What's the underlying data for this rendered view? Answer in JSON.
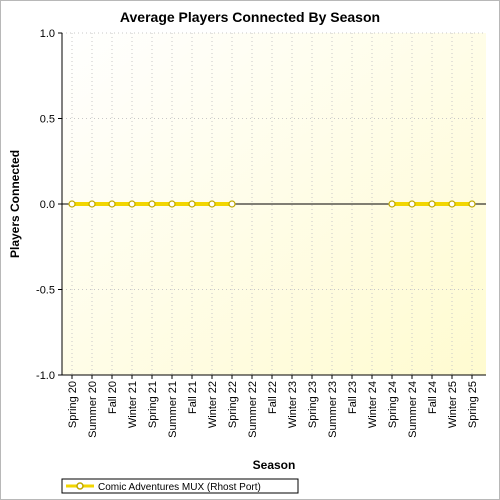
{
  "chart_data": {
    "type": "line",
    "title": "Average Players Connected By Season",
    "xlabel": "Season",
    "ylabel": "Players Connected",
    "ylim": [
      -1.0,
      1.0
    ],
    "yticks": [
      "1.0",
      "0.5",
      "0.0",
      "-0.5",
      "-1.0"
    ],
    "yticks_values": [
      1.0,
      0.5,
      0.0,
      -0.5,
      -1.0
    ],
    "categories": [
      "Spring 20",
      "Summer 20",
      "Fall 20",
      "Winter 21",
      "Spring 21",
      "Summer 21",
      "Fall 21",
      "Winter 22",
      "Spring 22",
      "Summer 22",
      "Fall 22",
      "Winter 23",
      "Spring 23",
      "Summer 23",
      "Fall 23",
      "Winter 24",
      "Spring 24",
      "Summer 24",
      "Fall 24",
      "Winter 25",
      "Spring 25"
    ],
    "series": [
      {
        "name": "Comic Adventures MUX (Rhost Port)",
        "color": "#f2d600",
        "values": [
          0,
          0,
          0,
          0,
          0,
          0,
          0,
          0,
          0,
          null,
          null,
          null,
          null,
          null,
          null,
          null,
          0,
          0,
          0,
          0,
          0
        ]
      }
    ],
    "grid": true,
    "legend": "bottom-left",
    "background_gradient": [
      "#ffffff",
      "#fffbd0"
    ]
  }
}
